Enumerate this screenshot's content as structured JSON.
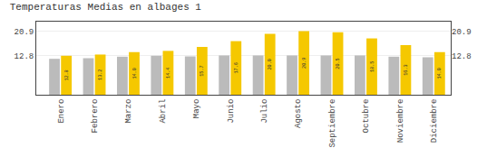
{
  "chart_data": {
    "type": "bar",
    "title": "Temperaturas Medias en albages 1",
    "categories": [
      "Enero",
      "Febrero",
      "Marzo",
      "Abril",
      "Mayo",
      "Junio",
      "Julio",
      "Agosto",
      "Septiembre",
      "Octubre",
      "Noviembre",
      "Diciembre"
    ],
    "series": [
      {
        "color": "#BBBBBB",
        "values": [
          11.8,
          12.0,
          12.5,
          12.8,
          12.6,
          12.9,
          12.9,
          12.9,
          12.9,
          12.9,
          12.5,
          12.3
        ]
      },
      {
        "color": "#F5C800",
        "values": [
          12.8,
          13.2,
          14.0,
          14.4,
          15.7,
          17.6,
          20.0,
          20.9,
          20.5,
          18.5,
          16.3,
          14.0
        ],
        "value_labels": [
          "12.8",
          "13.2",
          "14.0",
          "14.4",
          "15.7",
          "17.6",
          "20.0",
          "20.9",
          "20.5",
          "18.5",
          "16.3",
          "14.0"
        ],
        "data_labels": true
      }
    ],
    "ylim": [
      0,
      24
    ],
    "yticks": [
      12.8,
      20.9
    ],
    "y2lim": [
      0,
      24
    ],
    "y2ticks": [
      12.8,
      20.9
    ],
    "grid": true
  }
}
